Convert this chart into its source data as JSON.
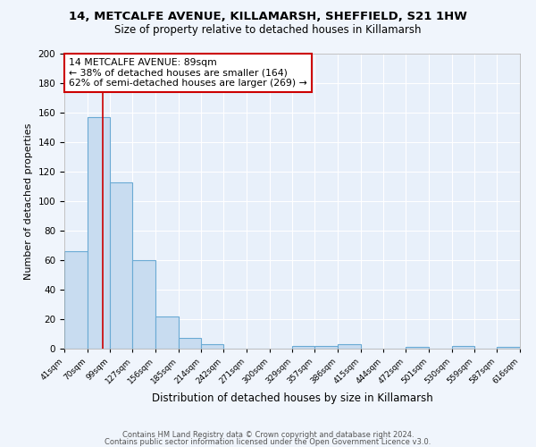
{
  "title": "14, METCALFE AVENUE, KILLAMARSH, SHEFFIELD, S21 1HW",
  "subtitle": "Size of property relative to detached houses in Killamarsh",
  "xlabel": "Distribution of detached houses by size in Killamarsh",
  "ylabel": "Number of detached properties",
  "bins": [
    41,
    70,
    99,
    127,
    156,
    185,
    214,
    242,
    271,
    300,
    329,
    357,
    386,
    415,
    444,
    472,
    501,
    530,
    559,
    587,
    616
  ],
  "counts": [
    66,
    157,
    113,
    60,
    22,
    7,
    3,
    0,
    0,
    0,
    2,
    2,
    3,
    0,
    0,
    1,
    0,
    2,
    0,
    1
  ],
  "bar_color": "#c8dcf0",
  "bar_edge_color": "#6aaad4",
  "bar_edge_width": 0.8,
  "vline_x": 89,
  "vline_color": "#cc0000",
  "ylim": [
    0,
    200
  ],
  "yticks": [
    0,
    20,
    40,
    60,
    80,
    100,
    120,
    140,
    160,
    180,
    200
  ],
  "tick_labels": [
    "41sqm",
    "70sqm",
    "99sqm",
    "127sqm",
    "156sqm",
    "185sqm",
    "214sqm",
    "242sqm",
    "271sqm",
    "300sqm",
    "329sqm",
    "357sqm",
    "386sqm",
    "415sqm",
    "444sqm",
    "472sqm",
    "501sqm",
    "530sqm",
    "559sqm",
    "587sqm",
    "616sqm"
  ],
  "annotation_title": "14 METCALFE AVENUE: 89sqm",
  "annotation_line1": "← 38% of detached houses are smaller (164)",
  "annotation_line2": "62% of semi-detached houses are larger (269) →",
  "annotation_box_color": "#ffffff",
  "annotation_box_edge": "#cc0000",
  "footer_line1": "Contains HM Land Registry data © Crown copyright and database right 2024.",
  "footer_line2": "Contains public sector information licensed under the Open Government Licence v3.0.",
  "fig_facecolor": "#f0f5fc",
  "ax_facecolor": "#e8f0fa"
}
